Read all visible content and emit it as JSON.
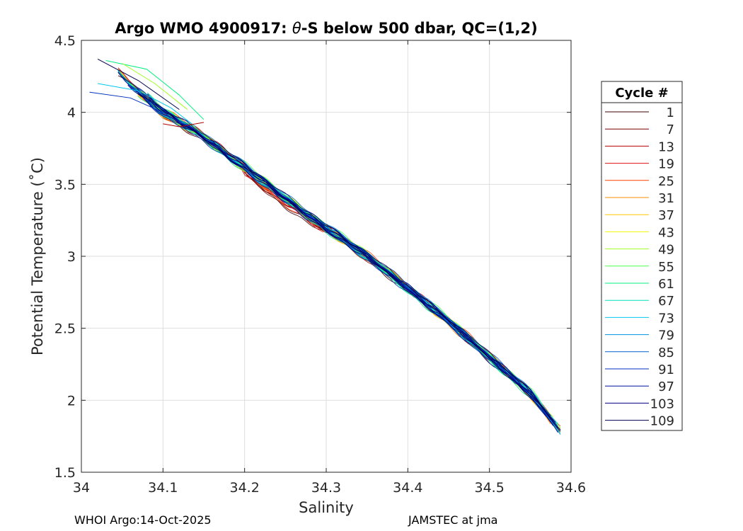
{
  "chart_data": {
    "type": "line",
    "title_prefix": "Argo WMO 4900917: ",
    "title_theta": "θ",
    "title_suffix": "-S below 500 dbar,  QC=(1,2)",
    "xlabel": "Salinity",
    "ylabel": "Potential Temperature (˚C)",
    "xlim": [
      34.0,
      34.6
    ],
    "ylim": [
      1.5,
      4.5
    ],
    "xticks": [
      34,
      34.1,
      34.2,
      34.3,
      34.4,
      34.5,
      34.6
    ],
    "xtick_labels": [
      "34",
      "34.1",
      "34.2",
      "34.3",
      "34.4",
      "34.5",
      "34.6"
    ],
    "yticks": [
      1.5,
      2,
      2.5,
      3,
      3.5,
      4,
      4.5
    ],
    "ytick_labels": [
      "1.5",
      "2",
      "2.5",
      "3",
      "3.5",
      "4",
      "4.5"
    ],
    "grid": true,
    "legend": {
      "title": "Cycle #",
      "placement": "outside-right",
      "entries": [
        {
          "label": "1",
          "color": "#3b0000"
        },
        {
          "label": "7",
          "color": "#7a0000"
        },
        {
          "label": "13",
          "color": "#b30000"
        },
        {
          "label": "19",
          "color": "#e01010"
        },
        {
          "label": "25",
          "color": "#ff4000"
        },
        {
          "label": "31",
          "color": "#ff8c00"
        },
        {
          "label": "37",
          "color": "#ffc800"
        },
        {
          "label": "43",
          "color": "#f5f500"
        },
        {
          "label": "49",
          "color": "#a0ff20"
        },
        {
          "label": "55",
          "color": "#4cff4c"
        },
        {
          "label": "61",
          "color": "#00f080"
        },
        {
          "label": "67",
          "color": "#00e0c0"
        },
        {
          "label": "73",
          "color": "#00c8f0"
        },
        {
          "label": "79",
          "color": "#0090e0"
        },
        {
          "label": "85",
          "color": "#0060d0"
        },
        {
          "label": "91",
          "color": "#0030c0"
        },
        {
          "label": "97",
          "color": "#0010a0"
        },
        {
          "label": "103",
          "color": "#000080"
        },
        {
          "label": "109",
          "color": "#000050"
        }
      ]
    },
    "series_envelope": {
      "salinity": [
        34.05,
        34.1,
        34.15,
        34.2,
        34.25,
        34.3,
        34.35,
        34.4,
        34.45,
        34.5,
        34.55,
        34.585
      ],
      "theta": [
        4.25,
        4.0,
        3.83,
        3.62,
        3.4,
        3.2,
        3.0,
        2.78,
        2.55,
        2.3,
        2.05,
        1.8
      ]
    },
    "cold_fresh_tails": [
      {
        "color_index": 15,
        "salinity": [
          34.01,
          34.06,
          34.1,
          34.13
        ],
        "theta": [
          4.14,
          4.1,
          4.0,
          3.9
        ]
      },
      {
        "color_index": 12,
        "salinity": [
          34.02,
          34.07,
          34.11,
          34.14
        ],
        "theta": [
          4.2,
          4.15,
          4.03,
          3.9
        ]
      },
      {
        "color_index": 10,
        "salinity": [
          34.03,
          34.08,
          34.12,
          34.15
        ],
        "theta": [
          4.36,
          4.3,
          4.12,
          3.95
        ]
      },
      {
        "color_index": 8,
        "salinity": [
          34.05,
          34.09,
          34.13
        ],
        "theta": [
          4.34,
          4.2,
          4.02
        ]
      },
      {
        "color_index": 18,
        "salinity": [
          34.02,
          34.07,
          34.12
        ],
        "theta": [
          4.37,
          4.22,
          4.02
        ]
      },
      {
        "color_index": 2,
        "salinity": [
          34.1,
          34.12,
          34.15
        ],
        "theta": [
          3.92,
          3.9,
          3.93
        ]
      }
    ]
  },
  "footer": {
    "left": "WHOI Argo:14-Oct-2025",
    "right": "JAMSTEC at jma"
  }
}
